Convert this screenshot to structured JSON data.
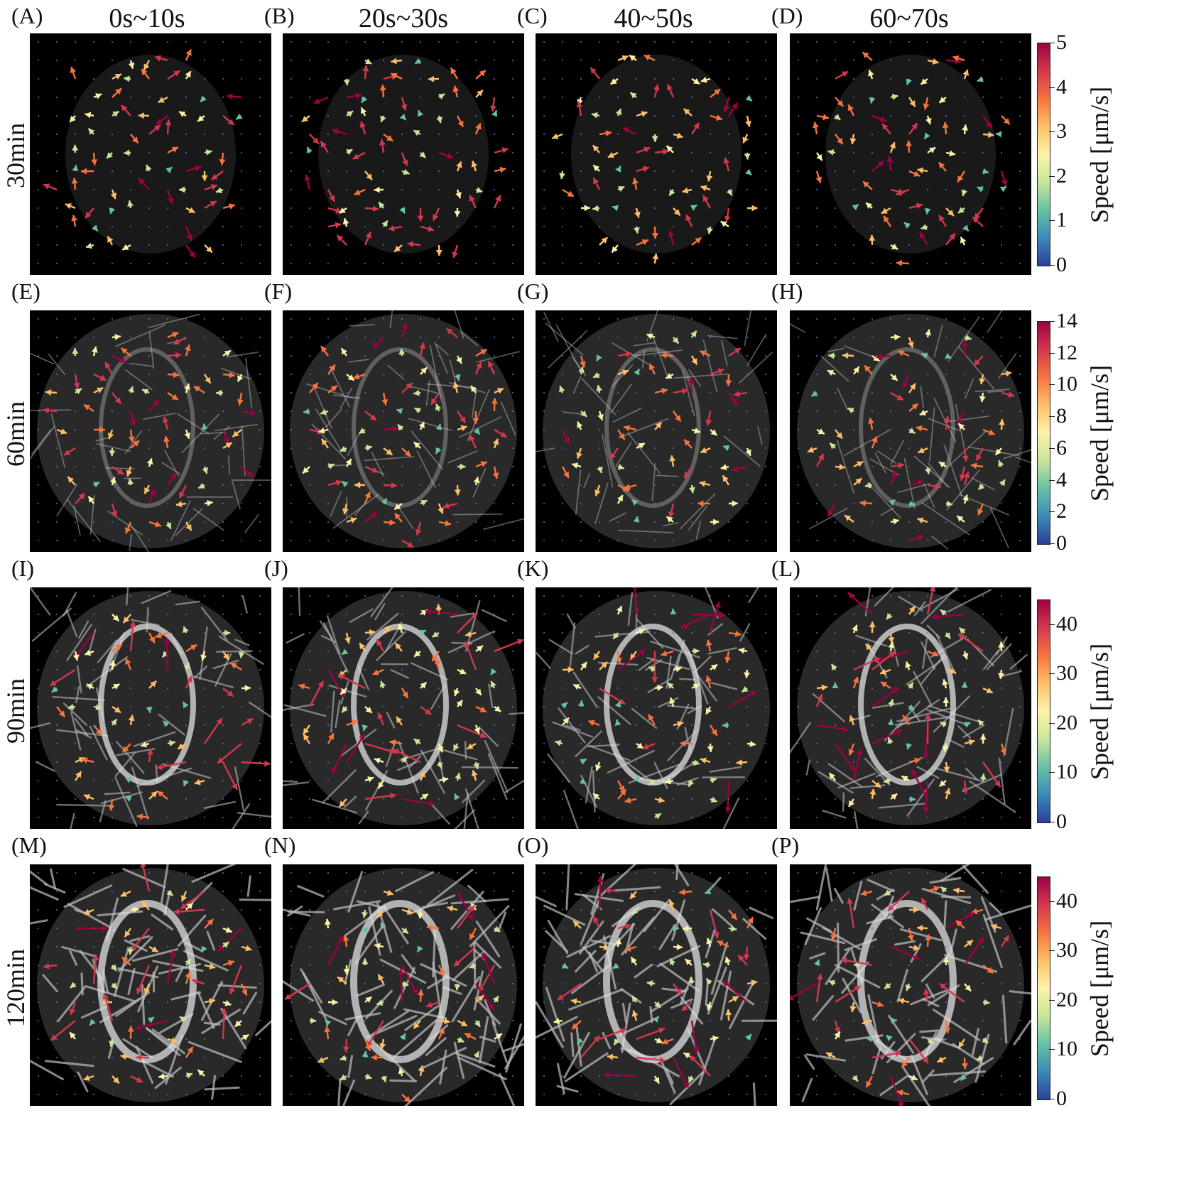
{
  "columns": [
    "0s~10s",
    "20s~30s",
    "40~50s",
    "60~70s"
  ],
  "rows": [
    "30min",
    "60min",
    "90min",
    "120min"
  ],
  "panel_labels": [
    "(A)",
    "(B)",
    "(C)",
    "(D)",
    "(E)",
    "(F)",
    "(G)",
    "(H)",
    "(I)",
    "(J)",
    "(K)",
    "(L)",
    "(M)",
    "(N)",
    "(O)",
    "(P)"
  ],
  "colorbar_title": "Speed [μm/s]",
  "colorbars": [
    {
      "ticks": [
        "0",
        "1",
        "2",
        "3",
        "4",
        "5"
      ],
      "max": 5
    },
    {
      "ticks": [
        "0",
        "2",
        "4",
        "6",
        "8",
        "10",
        "12",
        "14"
      ],
      "max": 14
    },
    {
      "ticks": [
        "0",
        "10",
        "20",
        "30",
        "40"
      ],
      "max": 45
    },
    {
      "ticks": [
        "0",
        "10",
        "20",
        "30",
        "40"
      ],
      "max": 45
    }
  ],
  "colors": {
    "panel_bg": "#000000",
    "colormap": [
      "#2b3f9a",
      "#3a8bb8",
      "#66c2a5",
      "#c8e69a",
      "#fdf3a8",
      "#fdc068",
      "#f7743f",
      "#d3384e",
      "#9e0142"
    ]
  }
}
